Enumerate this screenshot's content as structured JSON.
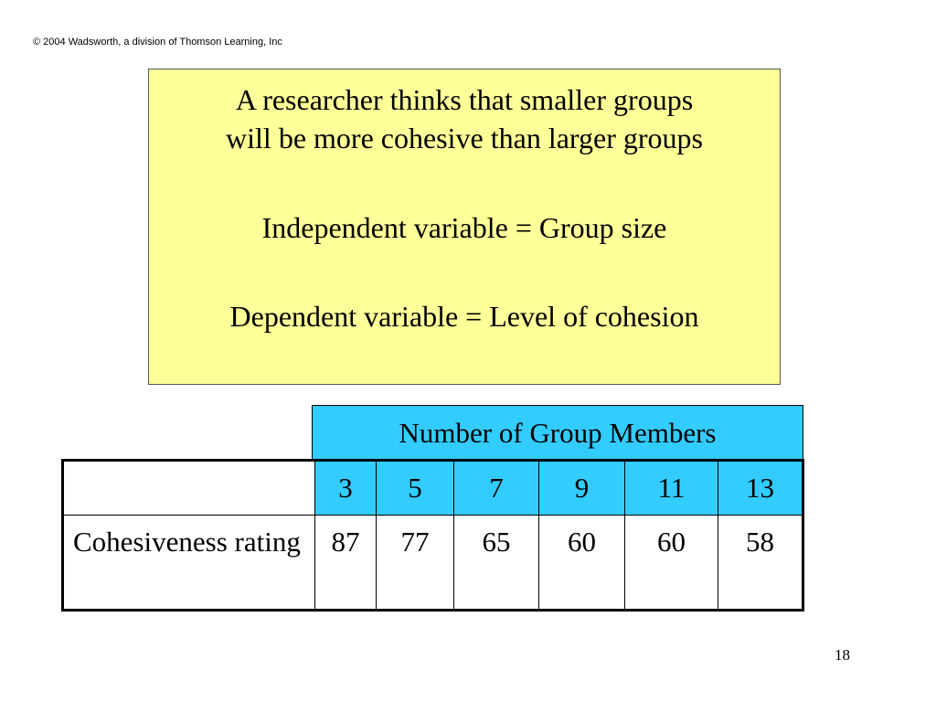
{
  "copyright": "© 2004 Wadsworth, a division of Thomson Learning, Inc",
  "hypothesis": {
    "line1": "A researcher thinks that smaller groups",
    "line2": "will be more cohesive than larger groups",
    "independent": "Independent variable = Group size",
    "dependent": "Dependent variable = Level of cohesion"
  },
  "table": {
    "header": "Number of Group Members",
    "row_label": "Cohesiveness rating",
    "columns": [
      "3",
      "5",
      "7",
      "9",
      "11",
      "13"
    ],
    "values": [
      "87",
      "77",
      "65",
      "60",
      "60",
      "58"
    ]
  },
  "slide_number": "18",
  "colors": {
    "box_background": "#ffff99",
    "header_background": "#33ccff"
  }
}
